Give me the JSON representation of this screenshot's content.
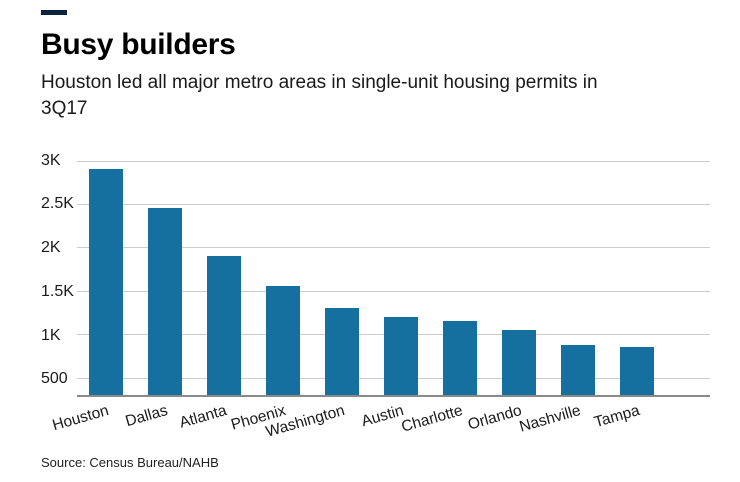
{
  "header": {
    "title": "Busy builders",
    "subtitle": "Houston led all major metro areas in single-unit housing permits in 3Q17",
    "accent_color": "#0c2340"
  },
  "chart_data": {
    "type": "bar",
    "title": "Busy builders",
    "subtitle": "Houston led all major metro areas in single-unit housing permits in 3Q17",
    "categories": [
      "Houston",
      "Dallas",
      "Atlanta",
      "Phoenix",
      "Washington",
      "Austin",
      "Charlotte",
      "Orlando",
      "Nashville",
      "Tampa"
    ],
    "values": [
      2900,
      2450,
      1900,
      1560,
      1300,
      1200,
      1150,
      1050,
      870,
      850
    ],
    "xlabel": "",
    "ylabel": "",
    "yticks": [
      {
        "value": 500,
        "label": "500"
      },
      {
        "value": 1000,
        "label": "1K"
      },
      {
        "value": 1500,
        "label": "1.5K"
      },
      {
        "value": 2000,
        "label": "2K"
      },
      {
        "value": 2500,
        "label": "2.5K"
      },
      {
        "value": 3000,
        "label": "3K"
      }
    ],
    "ylim": [
      300,
      3100
    ],
    "grid": true,
    "legend": false,
    "bar_color": "#15709f",
    "gridline_color": "#cccccc",
    "axis_line_color": "#8a8a8a"
  },
  "source": {
    "label": "Source: Census Bureau/NAHB"
  }
}
